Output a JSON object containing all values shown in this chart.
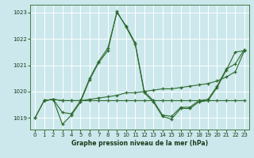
{
  "bg_color": "#cce8ec",
  "grid_color": "#ffffff",
  "line_color": "#2d6a2d",
  "title": "Graphe pression niveau de la mer (hPa)",
  "ylim": [
    1018.55,
    1023.3
  ],
  "xlim": [
    -0.5,
    23.5
  ],
  "yticks": [
    1019,
    1020,
    1021,
    1022,
    1023
  ],
  "xticks": [
    0,
    1,
    2,
    3,
    4,
    5,
    6,
    7,
    8,
    9,
    10,
    11,
    12,
    13,
    14,
    15,
    16,
    17,
    18,
    19,
    20,
    21,
    22,
    23
  ],
  "series1": {
    "x": [
      0,
      1,
      2,
      3,
      4,
      5,
      6,
      7,
      8,
      9,
      10,
      11,
      12,
      13,
      14,
      15,
      16,
      17,
      18,
      19,
      20,
      21,
      22,
      23
    ],
    "y": [
      1019.0,
      1019.65,
      1019.7,
      1019.2,
      1019.15,
      1019.65,
      1020.5,
      1021.15,
      1021.65,
      1023.0,
      1022.5,
      1021.85,
      1020.0,
      1019.65,
      1019.1,
      1019.05,
      1019.4,
      1019.4,
      1019.65,
      1019.7,
      1020.2,
      1020.85,
      1021.05,
      1021.6
    ]
  },
  "series2": {
    "x": [
      0,
      1,
      2,
      3,
      4,
      5,
      6,
      7,
      8,
      9,
      10,
      11,
      12,
      13,
      14,
      15,
      16,
      17,
      18,
      19,
      20,
      21,
      22,
      23
    ],
    "y": [
      1019.0,
      1019.65,
      1019.7,
      1018.75,
      1019.1,
      1019.6,
      1020.45,
      1021.1,
      1021.55,
      1023.05,
      1022.45,
      1021.8,
      1019.95,
      1019.6,
      1019.05,
      1018.95,
      1019.35,
      1019.35,
      1019.6,
      1019.65,
      1020.15,
      1020.8,
      1021.5,
      1021.55
    ]
  },
  "series3": {
    "x": [
      1,
      2,
      3,
      4,
      5,
      6,
      7,
      8,
      9,
      10,
      11,
      12,
      13,
      14,
      15,
      16,
      17,
      18,
      19,
      20,
      21,
      22,
      23
    ],
    "y": [
      1019.65,
      1019.7,
      1019.65,
      1019.65,
      1019.65,
      1019.7,
      1019.75,
      1019.8,
      1019.85,
      1019.95,
      1019.95,
      1020.0,
      1020.05,
      1020.1,
      1020.1,
      1020.15,
      1020.2,
      1020.25,
      1020.3,
      1020.4,
      1020.55,
      1020.75,
      1021.55
    ]
  },
  "series4": {
    "x": [
      1,
      2,
      3,
      4,
      5,
      6,
      7,
      8,
      9,
      10,
      11,
      12,
      13,
      14,
      15,
      16,
      17,
      18,
      19,
      20,
      21,
      22,
      23
    ],
    "y": [
      1019.65,
      1019.7,
      1019.65,
      1019.65,
      1019.65,
      1019.65,
      1019.65,
      1019.65,
      1019.65,
      1019.65,
      1019.65,
      1019.65,
      1019.65,
      1019.65,
      1019.65,
      1019.65,
      1019.65,
      1019.65,
      1019.65,
      1019.65,
      1019.65,
      1019.65,
      1019.65
    ]
  }
}
